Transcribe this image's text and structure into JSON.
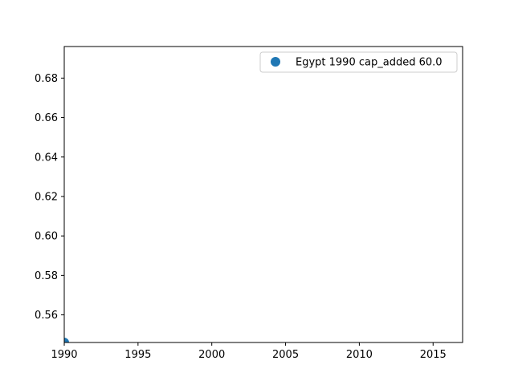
{
  "chart_data": {
    "type": "scatter",
    "title": "",
    "xlabel": "",
    "ylabel": "",
    "xlim": [
      1990,
      2017
    ],
    "ylim": [
      0.546,
      0.696
    ],
    "x_ticks": [
      1990,
      1995,
      2000,
      2005,
      2010,
      2015
    ],
    "x_tick_labels": [
      "1990",
      "1995",
      "2000",
      "2005",
      "2010",
      "2015"
    ],
    "y_ticks": [
      0.56,
      0.58,
      0.6,
      0.62,
      0.64,
      0.66,
      0.68
    ],
    "y_tick_labels": [
      "0.56",
      "0.58",
      "0.60",
      "0.62",
      "0.64",
      "0.66",
      "0.68"
    ],
    "grid": false,
    "legend_position": "top-right",
    "series": [
      {
        "name": "Egypt 1990 cap_added 60.0",
        "color": "#1f77b4",
        "points": [
          {
            "x": 1990,
            "y": 0.546
          }
        ]
      }
    ]
  }
}
